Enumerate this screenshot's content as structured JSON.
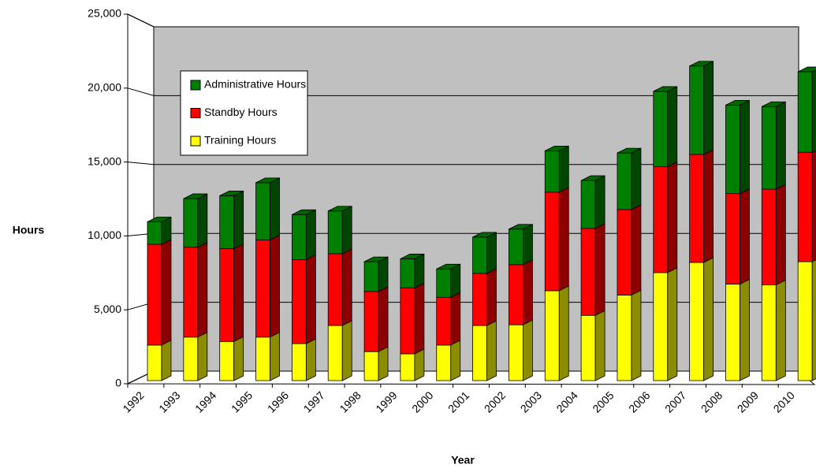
{
  "chart_data": {
    "type": "bar",
    "stacked": true,
    "x_label": "Year",
    "y_label": "Hours",
    "categories": [
      "1992",
      "1993",
      "1994",
      "1995",
      "1996",
      "1997",
      "1998",
      "1999",
      "2000",
      "2001",
      "2002",
      "2003",
      "2004",
      "2005",
      "2006",
      "2007",
      "2008",
      "2009",
      "2010"
    ],
    "series": [
      {
        "name": "Training Hours",
        "color": "#ffff00",
        "values": [
          2450,
          3000,
          2700,
          3000,
          2550,
          3800,
          2000,
          1850,
          2450,
          3800,
          3850,
          6200,
          4500,
          5900,
          7450,
          8150,
          6650,
          6600,
          8200
        ]
      },
      {
        "name": "Standby Hours",
        "color": "#ff0000",
        "values": [
          6950,
          6200,
          6400,
          6700,
          5800,
          4950,
          4150,
          4550,
          3300,
          3600,
          4150,
          6800,
          6000,
          5900,
          7300,
          7450,
          6250,
          6600,
          7550
        ]
      },
      {
        "name": "Administrative Hours",
        "color": "#008000",
        "values": [
          1550,
          3350,
          3650,
          3950,
          3100,
          2950,
          2050,
          2000,
          1950,
          2500,
          2450,
          2850,
          3300,
          3900,
          5200,
          6100,
          6100,
          5700,
          5550
        ]
      }
    ],
    "ylim": [
      0,
      25000
    ],
    "yticks": [
      0,
      {
        "value": 5000,
        "label": "5,000"
      },
      {
        "value": 10000,
        "label": "10,000"
      },
      {
        "value": 15000,
        "label": "15,000"
      },
      {
        "value": 20000,
        "label": "20,000"
      },
      {
        "value": 25000,
        "label": "25,000"
      }
    ],
    "grid": true
  }
}
